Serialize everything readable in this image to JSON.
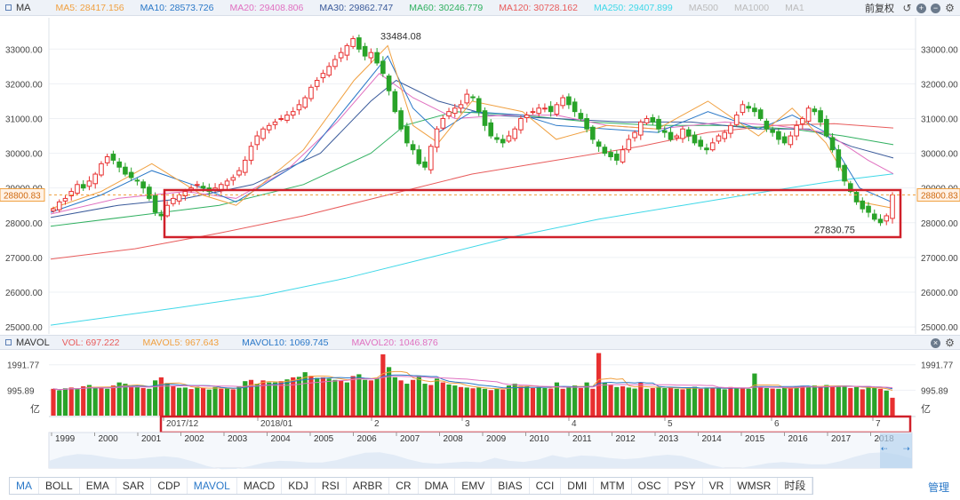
{
  "price_header": {
    "indicator": "MA",
    "ma_values": [
      {
        "label": "MA5: 28417.156",
        "color": "#f0a040"
      },
      {
        "label": "MA10: 28573.726",
        "color": "#2a78c8"
      },
      {
        "label": "MA20: 29408.806",
        "color": "#e070c0"
      },
      {
        "label": "MA30: 29862.747",
        "color": "#3a5a9a"
      },
      {
        "label": "MA60: 30246.779",
        "color": "#30b060"
      },
      {
        "label": "MA120: 30728.162",
        "color": "#e85c5c"
      },
      {
        "label": "MA250: 29407.899",
        "color": "#40d8e8"
      },
      {
        "label": "MA500",
        "color": "#bbbbbb"
      },
      {
        "label": "MA1000",
        "color": "#bbbbbb"
      },
      {
        "label": "MA1",
        "color": "#bbbbbb"
      }
    ],
    "adjust_label": "前复权",
    "controls": [
      "undo-icon",
      "zoom-in-icon",
      "zoom-out-icon",
      "settings-icon"
    ]
  },
  "volume_header": {
    "indicator": "MAVOL",
    "ma_values": [
      {
        "label": "VOL: 697.222",
        "color": "#e85c5c"
      },
      {
        "label": "MAVOL5: 967.643",
        "color": "#f0a040"
      },
      {
        "label": "MAVOL10: 1069.745",
        "color": "#2a78c8"
      },
      {
        "label": "MAVOL20: 1046.876",
        "color": "#e070c0"
      }
    ]
  },
  "chart_data": [
    {
      "type": "candlestick",
      "title": "",
      "xlabel": "",
      "ylabel": "",
      "y_ticks": [
        "33000.00",
        "32000.00",
        "31000.00",
        "30000.00",
        "29000.00",
        "28000.00",
        "27000.00",
        "26000.00",
        "25000.00"
      ],
      "ylim": [
        24900,
        33800
      ],
      "current_price_label": "28800.83",
      "current_price": 28800.83,
      "annotations": [
        {
          "text": "33484.08",
          "value": 33484.08
        },
        {
          "text": "27830.75",
          "value": 27830.75
        }
      ],
      "ohlc_close_path": [
        28400,
        28600,
        28700,
        28900,
        29100,
        29000,
        29200,
        29400,
        29700,
        29900,
        29800,
        29600,
        29400,
        29300,
        29200,
        29000,
        28700,
        28300,
        28200,
        28500,
        28700,
        28800,
        28900,
        29000,
        29100,
        29000,
        28900,
        29000,
        29100,
        29200,
        29300,
        29500,
        29800,
        30200,
        30500,
        30700,
        30800,
        30900,
        31000,
        31100,
        31200,
        31400,
        31600,
        31900,
        32100,
        32300,
        32500,
        32700,
        32900,
        33100,
        33300,
        33000,
        32800,
        32900,
        32600,
        32300,
        31800,
        31200,
        30700,
        30300,
        30100,
        29700,
        29600,
        30200,
        30700,
        31000,
        31200,
        31300,
        31400,
        31700,
        31600,
        31200,
        30800,
        30500,
        30400,
        30300,
        30500,
        30700,
        31000,
        31100,
        31200,
        31300,
        31300,
        31200,
        31400,
        31600,
        31400,
        31200,
        31000,
        30700,
        30400,
        30200,
        30000,
        29900,
        29800,
        30100,
        30400,
        30600,
        30900,
        31000,
        30900,
        30700,
        30600,
        30400,
        30500,
        30700,
        30500,
        30300,
        30200,
        30100,
        30300,
        30500,
        30600,
        30800,
        31100,
        31400,
        31300,
        31200,
        31000,
        30700,
        30600,
        30400,
        30300,
        30500,
        30800,
        31000,
        31300,
        31200,
        30900,
        30500,
        30100,
        29600,
        29200,
        28900,
        28600,
        28400,
        28300,
        28100,
        28000,
        28200,
        28800
      ],
      "moving_averages": [
        {
          "name": "MA120",
          "color": "#e85c5c",
          "points": [
            [
              0,
              26950
            ],
            [
              0.1,
              27250
            ],
            [
              0.2,
              27700
            ],
            [
              0.3,
              28200
            ],
            [
              0.4,
              28800
            ],
            [
              0.5,
              29400
            ],
            [
              0.6,
              29800
            ],
            [
              0.7,
              30200
            ],
            [
              0.78,
              30600
            ],
            [
              0.86,
              30800
            ],
            [
              0.93,
              30850
            ],
            [
              1,
              30728
            ]
          ]
        },
        {
          "name": "MA250",
          "color": "#40d8e8",
          "points": [
            [
              0,
              25050
            ],
            [
              0.15,
              25550
            ],
            [
              0.25,
              25900
            ],
            [
              0.35,
              26400
            ],
            [
              0.45,
              27000
            ],
            [
              0.55,
              27600
            ],
            [
              0.65,
              28100
            ],
            [
              0.75,
              28500
            ],
            [
              0.85,
              28900
            ],
            [
              0.93,
              29200
            ],
            [
              1,
              29408
            ]
          ]
        },
        {
          "name": "MA60",
          "color": "#30b060",
          "points": [
            [
              0,
              27900
            ],
            [
              0.1,
              28200
            ],
            [
              0.2,
              28500
            ],
            [
              0.3,
              29100
            ],
            [
              0.38,
              30000
            ],
            [
              0.42,
              30800
            ],
            [
              0.48,
              31200
            ],
            [
              0.56,
              31100
            ],
            [
              0.64,
              30900
            ],
            [
              0.72,
              30800
            ],
            [
              0.8,
              30800
            ],
            [
              0.88,
              30700
            ],
            [
              0.94,
              30500
            ],
            [
              1,
              30247
            ]
          ]
        },
        {
          "name": "MA30",
          "color": "#3a5a9a",
          "points": [
            [
              0,
              28150
            ],
            [
              0.08,
              28500
            ],
            [
              0.16,
              28700
            ],
            [
              0.24,
              29100
            ],
            [
              0.32,
              30000
            ],
            [
              0.38,
              31500
            ],
            [
              0.41,
              32100
            ],
            [
              0.46,
              31500
            ],
            [
              0.52,
              31100
            ],
            [
              0.6,
              31000
            ],
            [
              0.68,
              30900
            ],
            [
              0.76,
              30900
            ],
            [
              0.84,
              30700
            ],
            [
              0.9,
              30700
            ],
            [
              0.95,
              30200
            ],
            [
              1,
              29863
            ]
          ]
        },
        {
          "name": "MA20",
          "color": "#e070c0",
          "points": [
            [
              0,
              28250
            ],
            [
              0.08,
              28700
            ],
            [
              0.16,
              28900
            ],
            [
              0.22,
              28700
            ],
            [
              0.28,
              29500
            ],
            [
              0.34,
              30900
            ],
            [
              0.39,
              32300
            ],
            [
              0.43,
              31600
            ],
            [
              0.48,
              31000
            ],
            [
              0.54,
              31100
            ],
            [
              0.6,
              31100
            ],
            [
              0.66,
              30800
            ],
            [
              0.72,
              30700
            ],
            [
              0.8,
              30900
            ],
            [
              0.86,
              30800
            ],
            [
              0.92,
              30600
            ],
            [
              0.97,
              29800
            ],
            [
              1,
              29409
            ]
          ]
        },
        {
          "name": "MA10",
          "color": "#2a78c8",
          "points": [
            [
              0,
              28300
            ],
            [
              0.06,
              28800
            ],
            [
              0.12,
              29500
            ],
            [
              0.18,
              29000
            ],
            [
              0.22,
              28600
            ],
            [
              0.3,
              29800
            ],
            [
              0.36,
              31600
            ],
            [
              0.4,
              32800
            ],
            [
              0.43,
              31300
            ],
            [
              0.46,
              30600
            ],
            [
              0.5,
              31200
            ],
            [
              0.56,
              31100
            ],
            [
              0.6,
              30800
            ],
            [
              0.66,
              30700
            ],
            [
              0.72,
              30600
            ],
            [
              0.78,
              31200
            ],
            [
              0.84,
              30700
            ],
            [
              0.88,
              31100
            ],
            [
              0.92,
              30600
            ],
            [
              0.96,
              29000
            ],
            [
              1,
              28574
            ]
          ]
        },
        {
          "name": "MA5",
          "color": "#f0a040",
          "points": [
            [
              0,
              28400
            ],
            [
              0.06,
              28900
            ],
            [
              0.12,
              29700
            ],
            [
              0.18,
              28800
            ],
            [
              0.22,
              28500
            ],
            [
              0.3,
              30100
            ],
            [
              0.36,
              32100
            ],
            [
              0.4,
              33100
            ],
            [
              0.43,
              30800
            ],
            [
              0.46,
              30300
            ],
            [
              0.5,
              31500
            ],
            [
              0.56,
              31200
            ],
            [
              0.6,
              30400
            ],
            [
              0.66,
              30800
            ],
            [
              0.72,
              30700
            ],
            [
              0.78,
              31500
            ],
            [
              0.84,
              30500
            ],
            [
              0.88,
              31300
            ],
            [
              0.92,
              30300
            ],
            [
              0.96,
              28600
            ],
            [
              1,
              28417
            ]
          ]
        }
      ]
    },
    {
      "type": "bar",
      "title": "",
      "xlabel": "",
      "ylabel": "",
      "y_ticks": [
        "1991.77",
        "995.89"
      ],
      "unit_label": "亿",
      "ylim": [
        0,
        2400
      ],
      "values": [
        1050,
        990,
        1070,
        1100,
        1040,
        1150,
        1200,
        1080,
        1120,
        1050,
        1180,
        1300,
        1250,
        1150,
        1120,
        1080,
        1050,
        1380,
        1500,
        1280,
        1150,
        1090,
        1100,
        1040,
        1130,
        1080,
        1020,
        1120,
        1050,
        1080,
        1030,
        1140,
        1350,
        1400,
        1250,
        1380,
        1300,
        1300,
        1350,
        1420,
        1500,
        1520,
        1700,
        1560,
        1480,
        1500,
        1450,
        1400,
        1380,
        1300,
        1550,
        1620,
        1400,
        1380,
        1450,
        2400,
        1900,
        1500,
        1380,
        1250,
        1400,
        1560,
        1250,
        1200,
        1450,
        1300,
        1220,
        1180,
        1120,
        1100,
        1070,
        1100,
        1050,
        1000,
        1060,
        1020,
        1180,
        1250,
        1160,
        1150,
        1080,
        1120,
        1080,
        1060,
        1300,
        1050,
        1120,
        1180,
        1080,
        1300,
        1050,
        2450,
        1300,
        1200,
        1120,
        1150,
        1100,
        1060,
        1300,
        1050,
        1080,
        1100,
        1080,
        1120,
        1050,
        1030,
        1080,
        1130,
        1050,
        1100,
        1090,
        1060,
        1030,
        1120,
        1080,
        1080,
        1050,
        1650,
        1140,
        1080,
        1060,
        1050,
        1090,
        1100,
        1150,
        1170,
        1130,
        1180,
        1100,
        1200,
        1170,
        1170,
        1170,
        1080,
        1120,
        1030,
        1150,
        1080,
        1050,
        980,
        700
      ],
      "moving_averages": [
        {
          "name": "MAVOL5",
          "color": "#f0a040"
        },
        {
          "name": "MAVOL10",
          "color": "#2a78c8"
        },
        {
          "name": "MAVOL20",
          "color": "#e070c0"
        }
      ]
    }
  ],
  "date_axis": {
    "months": [
      "2017/12",
      "2018/01",
      "2",
      "3",
      "4",
      "5",
      "6",
      "7"
    ],
    "years": [
      "1999",
      "2000",
      "2001",
      "2002",
      "2003",
      "2004",
      "2005",
      "2006",
      "2007",
      "2008",
      "2009",
      "2010",
      "2011",
      "2012",
      "2013",
      "2014",
      "2015",
      "2016",
      "2017",
      "2018"
    ]
  },
  "highlight_colors": {
    "up": "#e83030",
    "down": "#29a329",
    "box": "#d0202a",
    "range": "#b8d4f0"
  },
  "tabs": [
    "MA",
    "BOLL",
    "EMA",
    "SAR",
    "CDP",
    "MAVOL",
    "MACD",
    "KDJ",
    "RSI",
    "ARBR",
    "CR",
    "DMA",
    "EMV",
    "BIAS",
    "CCI",
    "DMI",
    "MTM",
    "OSC",
    "PSY",
    "VR",
    "WMSR",
    "时段"
  ],
  "active_tabs": [
    "MA",
    "MAVOL"
  ],
  "manage_label": "管理"
}
